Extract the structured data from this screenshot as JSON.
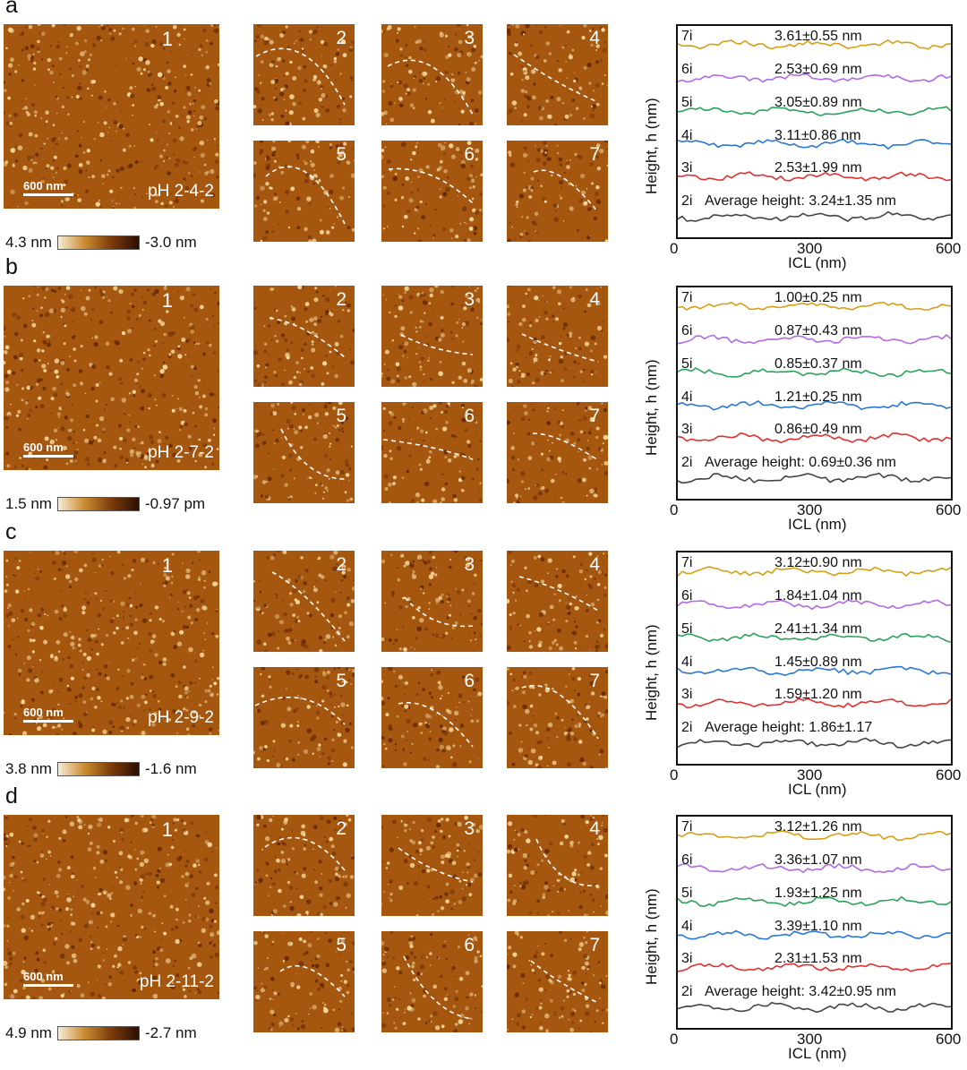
{
  "panels": [
    {
      "letter": "a",
      "main_label": "1",
      "ph": "pH 2-4-2",
      "scale": "600 nm",
      "cbar_max": "4.3 nm",
      "cbar_min": "-3.0 nm",
      "thumbs": [
        "2",
        "3",
        "4",
        "5",
        "6",
        "7"
      ],
      "plot": {
        "ylabel": "Height, h (nm)",
        "xlabel": "ICL (nm)",
        "ticks": [
          "0",
          "300",
          "600"
        ],
        "rows": [
          {
            "label": "7i",
            "value": "3.61±0.55 nm"
          },
          {
            "label": "6i",
            "value": "2.53±0.69 nm"
          },
          {
            "label": "5i",
            "value": "3.05±0.89 nm"
          },
          {
            "label": "4i",
            "value": "3.11±0.86 nm"
          },
          {
            "label": "3i",
            "value": "2.53±1.99 nm"
          },
          {
            "label": "2i",
            "value": "Average height: 3.24±1.35 nm"
          }
        ]
      }
    },
    {
      "letter": "b",
      "main_label": "1",
      "ph": "pH 2-7-2",
      "scale": "600 nm",
      "cbar_max": "1.5 nm",
      "cbar_min": "-0.97 pm",
      "thumbs": [
        "2",
        "3",
        "4",
        "5",
        "6",
        "7"
      ],
      "plot": {
        "ylabel": "Height, h (nm)",
        "xlabel": "ICL (nm)",
        "ticks": [
          "0",
          "300",
          "600"
        ],
        "rows": [
          {
            "label": "7i",
            "value": "1.00±0.25 nm"
          },
          {
            "label": "6i",
            "value": "0.87±0.43 nm"
          },
          {
            "label": "5i",
            "value": "0.85±0.37 nm"
          },
          {
            "label": "4i",
            "value": "1.21±0.25 nm"
          },
          {
            "label": "3i",
            "value": "0.86±0.49 nm"
          },
          {
            "label": "2i",
            "value": "Average height: 0.69±0.36 nm"
          }
        ]
      }
    },
    {
      "letter": "c",
      "main_label": "1",
      "ph": "pH 2-9-2",
      "scale": "600 nm",
      "cbar_max": "3.8 nm",
      "cbar_min": "-1.6 nm",
      "thumbs": [
        "2",
        "3",
        "4",
        "5",
        "6",
        "7"
      ],
      "plot": {
        "ylabel": "Height, h (nm)",
        "xlabel": "ICL (nm)",
        "ticks": [
          "0",
          "300",
          "600"
        ],
        "rows": [
          {
            "label": "7i",
            "value": "3.12±0.90 nm"
          },
          {
            "label": "6i",
            "value": "1.84±1.04 nm"
          },
          {
            "label": "5i",
            "value": "2.41±1.34 nm"
          },
          {
            "label": "4i",
            "value": "1.45±0.89 nm"
          },
          {
            "label": "3i",
            "value": "1.59±1.20 nm"
          },
          {
            "label": "2i",
            "value": "Average height: 1.86±1.17"
          }
        ]
      }
    },
    {
      "letter": "d",
      "main_label": "1",
      "ph": "pH 2-11-2",
      "scale": "600 nm",
      "cbar_max": "4.9 nm",
      "cbar_min": "-2.7 nm",
      "thumbs": [
        "2",
        "3",
        "4",
        "5",
        "6",
        "7"
      ],
      "plot": {
        "ylabel": "Height, h (nm)",
        "xlabel": "ICL (nm)",
        "ticks": [
          "0",
          "300",
          "600"
        ],
        "rows": [
          {
            "label": "7i",
            "value": "3.12±1.26 nm"
          },
          {
            "label": "6i",
            "value": "3.36±1.07 nm"
          },
          {
            "label": "5i",
            "value": "1.93±1.25 nm"
          },
          {
            "label": "4i",
            "value": "3.39±1.10 nm"
          },
          {
            "label": "3i",
            "value": "2.31±1.53 nm"
          },
          {
            "label": "2i",
            "value": "Average height: 3.42±0.95 nm"
          }
        ]
      }
    }
  ],
  "colors": {
    "afm_dark": "#6a2a05",
    "afm_mid": "#a5560f",
    "afm_light": "#f3d79a",
    "series": [
      "#d4a017",
      "#b36ae2",
      "#2aa35a",
      "#2a78d4",
      "#e03030",
      "#444444"
    ]
  }
}
